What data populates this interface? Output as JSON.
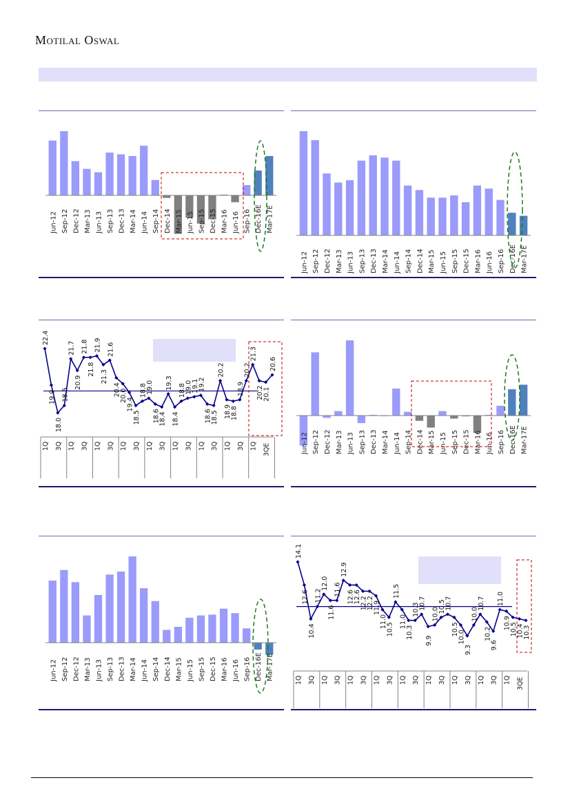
{
  "header": {
    "logo_text": "Motilal Oswal"
  },
  "colors": {
    "bar_main": "#9b9bfb",
    "bar_negative": "#808080",
    "bar_estimate": "#4f81bd",
    "line": "#00008b",
    "highlight_red": "#c00000",
    "highlight_green": "#1a7a1a",
    "banner": "#e0e0fb",
    "callout": "#e0e0fb"
  },
  "chart_data": [
    {
      "type": "bar",
      "title": "",
      "categories": [
        "Jun-12",
        "Sep-12",
        "Dec-12",
        "Mar-13",
        "Jun-13",
        "Sep-13",
        "Dec-13",
        "Mar-14",
        "Jun-14",
        "Sep-14",
        "Dec-14",
        "Mar-15",
        "Jun-15",
        "Sep-15",
        "Dec-15",
        "Mar-16",
        "Jun-16",
        "Sep-16",
        "Dec-16E",
        "Mar-17E"
      ],
      "values": [
        64,
        75,
        40,
        31,
        27,
        50,
        48,
        46,
        58,
        18,
        -3,
        -45,
        -26,
        -33,
        -28,
        1,
        -8,
        12,
        29,
        46
      ],
      "estimate_from_index": 18,
      "negative_highlight_range": [
        "Dec-14",
        "Jun-16"
      ],
      "ylim": [
        -60,
        100
      ],
      "grid": false
    },
    {
      "type": "bar",
      "title": "",
      "categories": [
        "Jun-12",
        "Sep-12",
        "Dec-12",
        "Mar-13",
        "Jun-13",
        "Sep-13",
        "Dec-13",
        "Mar-14",
        "Jun-14",
        "Sep-14",
        "Dec-14",
        "Mar-15",
        "Jun-15",
        "Sep-15",
        "Dec-15",
        "Mar-16",
        "Jun-16",
        "Sep-16",
        "Dec-16E",
        "Mar-17E"
      ],
      "values": [
        138,
        126,
        82,
        70,
        73,
        99,
        106,
        103,
        99,
        66,
        60,
        50,
        50,
        53,
        44,
        66,
        62,
        47,
        30,
        26
      ],
      "estimate_from_index": 18,
      "ylim": [
        0,
        160
      ],
      "grid": false
    },
    {
      "type": "line",
      "title": "",
      "groups": [
        "1Q",
        "3Q",
        "1Q",
        "3Q",
        "1Q",
        "3Q",
        "1Q",
        "3Q",
        "1Q",
        "3Q",
        "1Q",
        "3Q",
        "1Q",
        "3Q",
        "1Q",
        "3Q",
        "1Q",
        "3QE"
      ],
      "values": [
        22.4,
        19.9,
        18.0,
        18.5,
        21.7,
        20.9,
        21.8,
        21.8,
        21.9,
        21.3,
        21.6,
        20.4,
        20.0,
        19.4,
        18.5,
        18.8,
        19.0,
        18.6,
        18.4,
        19.3,
        18.4,
        18.8,
        19.0,
        19.1,
        19.2,
        18.6,
        18.5,
        20.2,
        18.9,
        18.8,
        18.9,
        20.2,
        21.3,
        20.2,
        20.1,
        20.6
      ],
      "average": 19.5,
      "ylim": [
        16.0,
        23.0
      ],
      "grid": false
    },
    {
      "type": "bar",
      "title": "",
      "categories": [
        "Jun-12",
        "Sep-12",
        "Dec-12",
        "Mar-13",
        "Jun-13",
        "Sep-13",
        "Dec-13",
        "Mar-14",
        "Jun-14",
        "Sep-14",
        "Dec-14",
        "Mar-15",
        "Jun-15",
        "Sep-15",
        "Dec-15",
        "Mar-16",
        "Jun-16",
        "Sep-16",
        "Dec-16E",
        "Mar-17E"
      ],
      "values": [
        -40,
        84,
        -3,
        6,
        100,
        -10,
        1,
        0,
        36,
        5,
        -7,
        -16,
        6,
        -4,
        -1,
        -23,
        1,
        13,
        35,
        41
      ],
      "estimate_from_index": 18,
      "negative_highlight_range": [
        "Dec-14",
        "Jun-16"
      ],
      "ylim": [
        -55,
        120
      ],
      "grid": false
    },
    {
      "type": "bar",
      "title": "",
      "categories": [
        "Jun-12",
        "Sep-12",
        "Dec-12",
        "Mar-13",
        "Jun-13",
        "Sep-13",
        "Dec-13",
        "Mar-14",
        "Jun-14",
        "Sep-14",
        "Dec-14",
        "Mar-15",
        "Jun-15",
        "Sep-15",
        "Dec-15",
        "Mar-16",
        "Jun-16",
        "Sep-16",
        "Dec-16E",
        "Mar-17E"
      ],
      "values": [
        82,
        96,
        80,
        36,
        63,
        90,
        94,
        114,
        72,
        55,
        17,
        21,
        33,
        36,
        37,
        45,
        39,
        19,
        -9,
        -16
      ],
      "estimate_from_index": 18,
      "ylim": [
        -40,
        140
      ],
      "grid": false
    },
    {
      "type": "line",
      "title": "",
      "groups": [
        "1Q",
        "3Q",
        "1Q",
        "3Q",
        "1Q",
        "3Q",
        "1Q",
        "3Q",
        "1Q",
        "3Q",
        "1Q",
        "3Q",
        "1Q",
        "3Q",
        "1Q",
        "3Q",
        "1Q",
        "3QE"
      ],
      "values": [
        14.1,
        12.6,
        10.4,
        11.2,
        12.0,
        11.6,
        11.6,
        12.9,
        12.6,
        12.6,
        12.2,
        12.2,
        11.9,
        11.0,
        10.5,
        11.5,
        11.0,
        10.3,
        10.3,
        10.7,
        9.9,
        10.0,
        10.5,
        10.7,
        10.5,
        10.0,
        9.3,
        10.0,
        10.7,
        10.2,
        9.6,
        11.0,
        10.9,
        10.5,
        10.4,
        10.3
      ],
      "average": 11.2,
      "ylim": [
        8.0,
        14.8
      ],
      "grid": false
    }
  ]
}
